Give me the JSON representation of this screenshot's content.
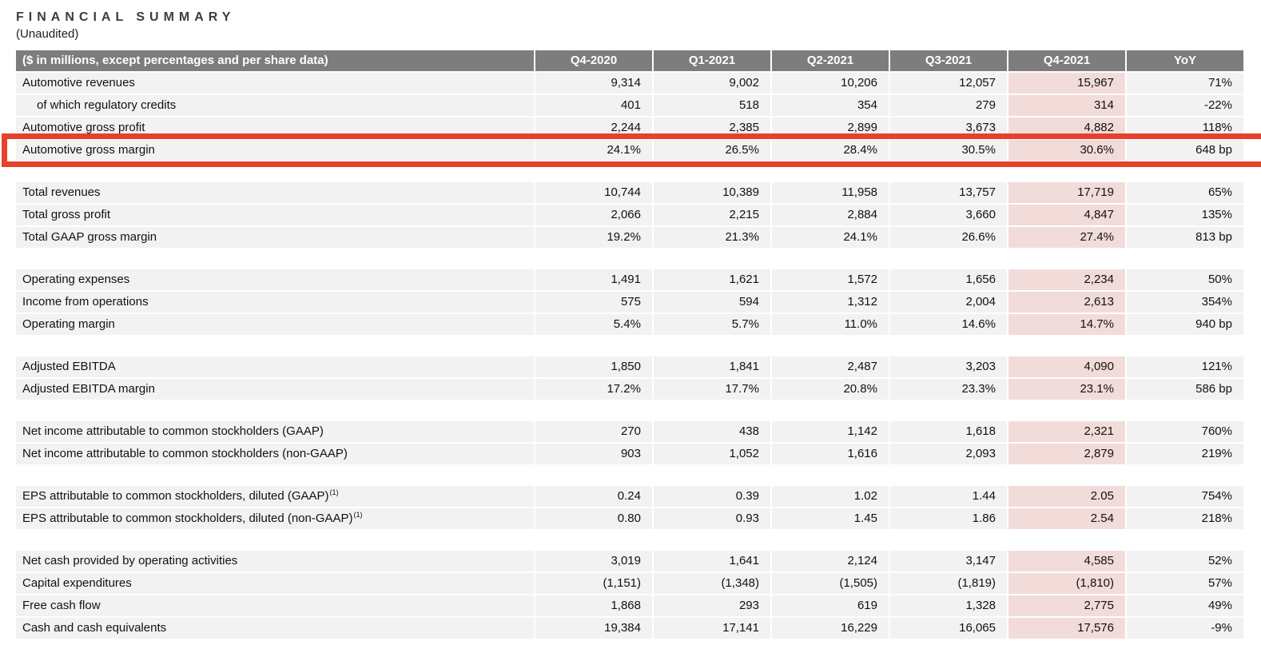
{
  "title": "FINANCIAL SUMMARY",
  "subtitle": "(Unaudited)",
  "colors": {
    "header_bg": "#7d7d7d",
    "header_text": "#ffffff",
    "row_bg": "#f2f2f2",
    "highlight_col_bg": "#f2dcd9",
    "highlight_box_border": "#e5412c",
    "text": "#111111"
  },
  "table": {
    "header": [
      "($ in millions, except percentages and per share data)",
      "Q4-2020",
      "Q1-2021",
      "Q2-2021",
      "Q3-2021",
      "Q4-2021",
      "YoY"
    ],
    "highlight_column": "Q4-2021",
    "sections": [
      {
        "rows": [
          {
            "label": "Automotive revenues",
            "values": [
              "9,314",
              "9,002",
              "10,206",
              "12,057",
              "15,967",
              "71%"
            ]
          },
          {
            "label": "of which regulatory credits",
            "indent": true,
            "values": [
              "401",
              "518",
              "354",
              "279",
              "314",
              "-22%"
            ]
          },
          {
            "label": "Automotive gross profit",
            "values": [
              "2,244",
              "2,385",
              "2,899",
              "3,673",
              "4,882",
              "118%"
            ]
          },
          {
            "label": "Automotive gross margin",
            "highlight_box": true,
            "values": [
              "24.1%",
              "26.5%",
              "28.4%",
              "30.5%",
              "30.6%",
              "648 bp"
            ]
          }
        ]
      },
      {
        "rows": [
          {
            "label": "Total revenues",
            "values": [
              "10,744",
              "10,389",
              "11,958",
              "13,757",
              "17,719",
              "65%"
            ]
          },
          {
            "label": "Total gross profit",
            "values": [
              "2,066",
              "2,215",
              "2,884",
              "3,660",
              "4,847",
              "135%"
            ]
          },
          {
            "label": "Total GAAP gross margin",
            "values": [
              "19.2%",
              "21.3%",
              "24.1%",
              "26.6%",
              "27.4%",
              "813 bp"
            ]
          }
        ]
      },
      {
        "rows": [
          {
            "label": "Operating expenses",
            "values": [
              "1,491",
              "1,621",
              "1,572",
              "1,656",
              "2,234",
              "50%"
            ]
          },
          {
            "label": "Income from operations",
            "values": [
              "575",
              "594",
              "1,312",
              "2,004",
              "2,613",
              "354%"
            ]
          },
          {
            "label": "Operating margin",
            "values": [
              "5.4%",
              "5.7%",
              "11.0%",
              "14.6%",
              "14.7%",
              "940 bp"
            ]
          }
        ]
      },
      {
        "rows": [
          {
            "label": "Adjusted EBITDA",
            "values": [
              "1,850",
              "1,841",
              "2,487",
              "3,203",
              "4,090",
              "121%"
            ]
          },
          {
            "label": "Adjusted EBITDA margin",
            "values": [
              "17.2%",
              "17.7%",
              "20.8%",
              "23.3%",
              "23.1%",
              "586 bp"
            ]
          }
        ]
      },
      {
        "rows": [
          {
            "label": "Net income attributable to common stockholders (GAAP)",
            "values": [
              "270",
              "438",
              "1,142",
              "1,618",
              "2,321",
              "760%"
            ]
          },
          {
            "label": "Net income attributable to common stockholders (non-GAAP)",
            "values": [
              "903",
              "1,052",
              "1,616",
              "2,093",
              "2,879",
              "219%"
            ]
          }
        ]
      },
      {
        "rows": [
          {
            "label": "EPS attributable to common stockholders, diluted (GAAP)",
            "superscript": "(1)",
            "values": [
              "0.24",
              "0.39",
              "1.02",
              "1.44",
              "2.05",
              "754%"
            ]
          },
          {
            "label": "EPS attributable to common stockholders, diluted (non-GAAP)",
            "superscript": "(1)",
            "values": [
              "0.80",
              "0.93",
              "1.45",
              "1.86",
              "2.54",
              "218%"
            ]
          }
        ]
      },
      {
        "rows": [
          {
            "label": "Net cash provided by operating activities",
            "values": [
              "3,019",
              "1,641",
              "2,124",
              "3,147",
              "4,585",
              "52%"
            ]
          },
          {
            "label": "Capital expenditures",
            "values": [
              "(1,151)",
              "(1,348)",
              "(1,505)",
              "(1,819)",
              "(1,810)",
              "57%"
            ]
          },
          {
            "label": "Free cash flow",
            "values": [
              "1,868",
              "293",
              "619",
              "1,328",
              "2,775",
              "49%"
            ]
          },
          {
            "label": "Cash and cash equivalents",
            "values": [
              "19,384",
              "17,141",
              "16,229",
              "16,065",
              "17,576",
              "-9%"
            ]
          }
        ]
      }
    ]
  }
}
